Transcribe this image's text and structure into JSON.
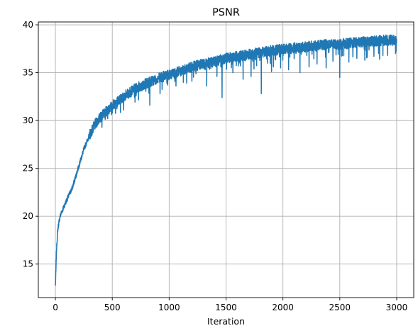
{
  "chart_data": {
    "type": "line",
    "title": "PSNR",
    "xlabel": "Iteration",
    "ylabel": "",
    "xlim": [
      -150,
      3150
    ],
    "ylim": [
      11.5,
      40.3
    ],
    "xticks": [
      0,
      500,
      1000,
      1500,
      2000,
      2500,
      3000
    ],
    "yticks": [
      15,
      20,
      25,
      30,
      35,
      40
    ],
    "grid": true,
    "legend": "none",
    "series": [
      {
        "color": "#1f77b4",
        "x": [
          0,
          5,
          10,
          20,
          30,
          40,
          50,
          75,
          100,
          150,
          200,
          250,
          300,
          350,
          400,
          450,
          500,
          600,
          700,
          800,
          900,
          1000,
          1100,
          1200,
          1300,
          1400,
          1500,
          1600,
          1700,
          1800,
          1900,
          2000,
          2100,
          2200,
          2300,
          2400,
          2500,
          2600,
          2700,
          2800,
          2900,
          3000
        ],
        "y": [
          12.7,
          14.5,
          16.5,
          18.5,
          19.3,
          19.9,
          20.3,
          21.0,
          21.7,
          23.0,
          25.0,
          27.0,
          28.5,
          29.6,
          30.4,
          31.0,
          31.6,
          32.5,
          33.3,
          33.9,
          34.4,
          34.8,
          35.2,
          35.6,
          35.9,
          36.2,
          36.5,
          36.7,
          36.9,
          37.1,
          37.3,
          37.5,
          37.6,
          37.7,
          37.85,
          37.95,
          38.0,
          38.1,
          38.2,
          38.3,
          38.4,
          38.4
        ],
        "dips": [
          {
            "x": 830,
            "y": 31.6
          },
          {
            "x": 920,
            "y": 32.8
          },
          {
            "x": 1060,
            "y": 33.6
          },
          {
            "x": 1200,
            "y": 34.1
          },
          {
            "x": 1330,
            "y": 33.6
          },
          {
            "x": 1420,
            "y": 34.6
          },
          {
            "x": 1465,
            "y": 32.4
          },
          {
            "x": 1560,
            "y": 35.0
          },
          {
            "x": 1650,
            "y": 34.3
          },
          {
            "x": 1720,
            "y": 34.6
          },
          {
            "x": 1810,
            "y": 32.8
          },
          {
            "x": 1900,
            "y": 35.1
          },
          {
            "x": 1980,
            "y": 35.5
          },
          {
            "x": 2050,
            "y": 35.3
          },
          {
            "x": 2150,
            "y": 35.0
          },
          {
            "x": 2230,
            "y": 35.6
          },
          {
            "x": 2300,
            "y": 35.9
          },
          {
            "x": 2380,
            "y": 35.5
          },
          {
            "x": 2440,
            "y": 36.2
          },
          {
            "x": 2500,
            "y": 34.5
          },
          {
            "x": 2580,
            "y": 36.1
          },
          {
            "x": 2650,
            "y": 36.5
          },
          {
            "x": 2720,
            "y": 36.3
          },
          {
            "x": 2800,
            "y": 36.7
          },
          {
            "x": 2850,
            "y": 36.4
          },
          {
            "x": 2920,
            "y": 36.8
          },
          {
            "x": 2990,
            "y": 37.0
          }
        ]
      }
    ]
  }
}
